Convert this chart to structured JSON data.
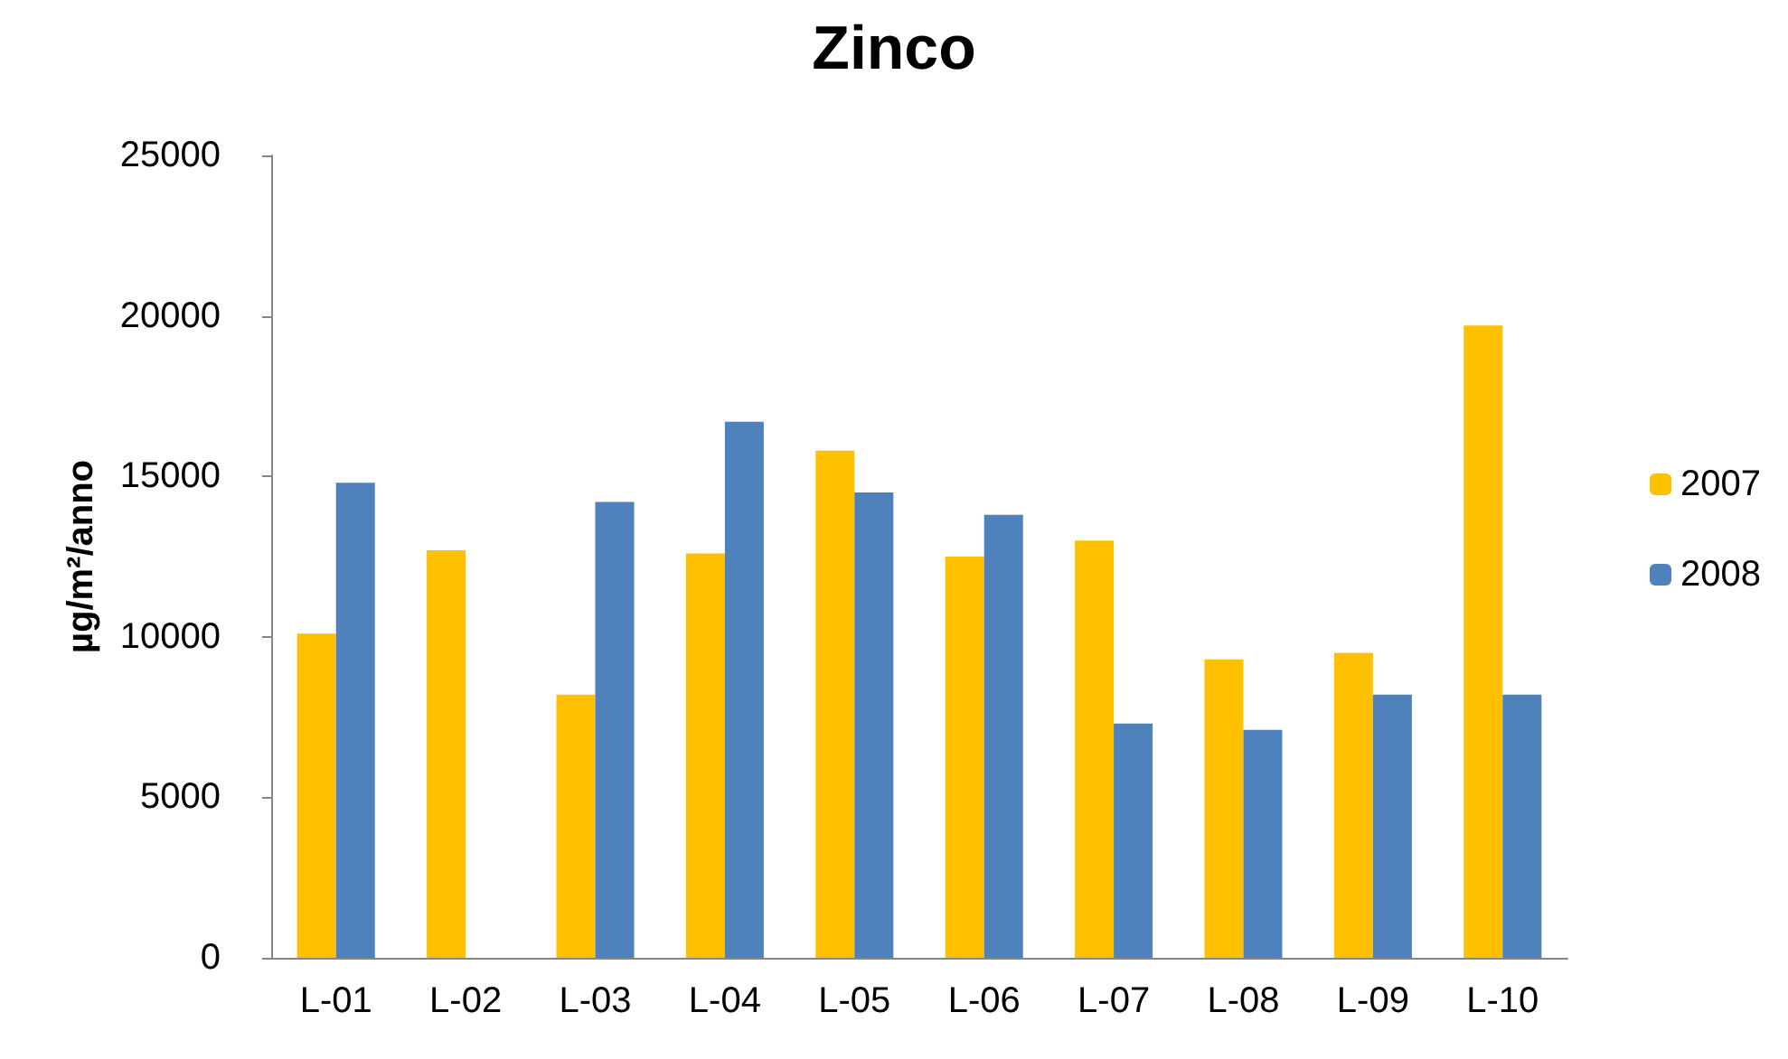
{
  "chart_data": {
    "type": "bar",
    "title": "Zinco",
    "ylabel": "µg/m²/anno",
    "categories": [
      "L-01",
      "L-02",
      "L-03",
      "L-04",
      "L-05",
      "L-06",
      "L-07",
      "L-08",
      "L-09",
      "L-10"
    ],
    "series": [
      {
        "name": "2007",
        "color": "#ffc000",
        "values": [
          10100,
          12700,
          8200,
          12600,
          15800,
          12500,
          13000,
          9300,
          9500,
          19700
        ]
      },
      {
        "name": "2008",
        "color": "#4f81bd",
        "values": [
          14800,
          null,
          14200,
          16700,
          14500,
          13800,
          7300,
          7100,
          8200,
          8200
        ]
      }
    ],
    "ylim": [
      0,
      25000
    ],
    "yticks": [
      0,
      5000,
      10000,
      15000,
      20000,
      25000
    ],
    "grid": false,
    "legend": "right"
  }
}
